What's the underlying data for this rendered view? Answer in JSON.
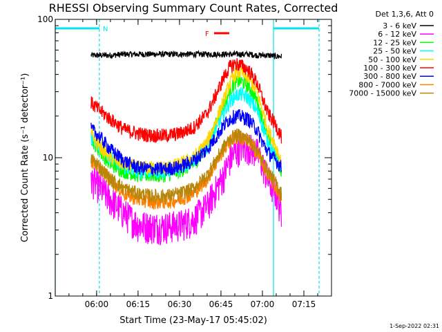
{
  "chart_data": {
    "type": "line",
    "title": "RHESSI Observing Summary Count Rates, Corrected",
    "xlabel": "Start Time (23-May-17 05:45:02)",
    "ylabel": "Corrected Count Rate (s⁻¹ detector⁻¹)",
    "y_scale": "log",
    "ylim": [
      1,
      100
    ],
    "xlim": [
      "05:45:02",
      "07:25:00"
    ],
    "x_ticks": [
      "06:00",
      "06:15",
      "06:30",
      "06:45",
      "07:00",
      "07:15"
    ],
    "y_ticks": [
      "1",
      "10",
      "100"
    ],
    "legend_title": "Det 1,3,6, Att 0",
    "legend_position": "right",
    "grid": false,
    "timestamp": "1-Sep-2022 02:31",
    "annotations": {
      "night_label": "N",
      "flare_label": "F",
      "night_periods": [
        [
          "05:45:02",
          "06:01:00"
        ],
        [
          "07:04:00",
          "07:20:30"
        ]
      ],
      "flare_period": [
        "06:42:30",
        "06:48:00"
      ]
    },
    "x": [
      "05:58",
      "06:00",
      "06:05",
      "06:10",
      "06:15",
      "06:20",
      "06:25",
      "06:30",
      "06:35",
      "06:40",
      "06:43",
      "06:46",
      "06:48",
      "06:50",
      "06:52",
      "06:55",
      "06:58",
      "07:00",
      "07:02",
      "07:05",
      "07:07"
    ],
    "series": [
      {
        "name": "3 - 6 keV",
        "color": "#000000",
        "values": [
          55,
          55,
          55,
          56,
          56,
          56,
          56,
          56,
          56,
          56,
          56,
          56,
          56,
          56,
          56,
          56,
          55,
          55,
          55,
          54,
          54
        ]
      },
      {
        "name": "6 - 12 keV",
        "color": "#ff00ff",
        "values": [
          7,
          6.5,
          5,
          4,
          3.3,
          3.2,
          3.2,
          3.3,
          3.6,
          4.5,
          5.8,
          7.5,
          9.5,
          11,
          12,
          12,
          11,
          9,
          7,
          5.5,
          4
        ]
      },
      {
        "name": "12 - 25 keV",
        "color": "#00ff00",
        "values": [
          14,
          12,
          9,
          8,
          7.5,
          7.5,
          7.5,
          8,
          9,
          12,
          17,
          24,
          30,
          35,
          36,
          33,
          26,
          19,
          14,
          10,
          8
        ]
      },
      {
        "name": "25 - 50 keV",
        "color": "#00ffff",
        "values": [
          14,
          13,
          10,
          8.5,
          8,
          8,
          8,
          8.5,
          9.5,
          12,
          16,
          21,
          25,
          28,
          29,
          27,
          22,
          17,
          13,
          10,
          8
        ]
      },
      {
        "name": "50 - 100 keV",
        "color": "#ffd700",
        "values": [
          15,
          13,
          10,
          9,
          8.5,
          8.5,
          8.5,
          9,
          10,
          13,
          18,
          26,
          34,
          40,
          42,
          38,
          30,
          22,
          16,
          12,
          9
        ]
      },
      {
        "name": "100 - 300 keV",
        "color": "#ff0000",
        "values": [
          25,
          23,
          19,
          16,
          15,
          14.5,
          14.5,
          15,
          16.5,
          21,
          28,
          38,
          45,
          48,
          47,
          43,
          35,
          27,
          21,
          17,
          14
        ]
      },
      {
        "name": "300 - 800 keV",
        "color": "#0000ff",
        "values": [
          16,
          15,
          11.5,
          9.5,
          8.5,
          8.3,
          8.3,
          8.6,
          9.5,
          11.5,
          14,
          17,
          19,
          20,
          20,
          19,
          16,
          13,
          11,
          9.5,
          8.5
        ]
      },
      {
        "name": "800 - 7000 keV",
        "color": "#ff8000",
        "values": [
          9.5,
          9,
          7,
          5.5,
          5,
          4.8,
          4.8,
          5,
          5.5,
          7,
          9,
          11.5,
          13,
          14,
          14,
          13,
          11,
          9,
          7.5,
          6,
          5
        ]
      },
      {
        "name": "7000 - 15000 keV",
        "color": "#b8860b",
        "values": [
          10,
          9,
          7,
          6,
          5.5,
          5.3,
          5.3,
          5.5,
          6,
          7.5,
          9.5,
          12,
          13.5,
          14.5,
          14.5,
          13.5,
          11.5,
          9.5,
          8,
          6.5,
          5.5
        ]
      }
    ]
  }
}
